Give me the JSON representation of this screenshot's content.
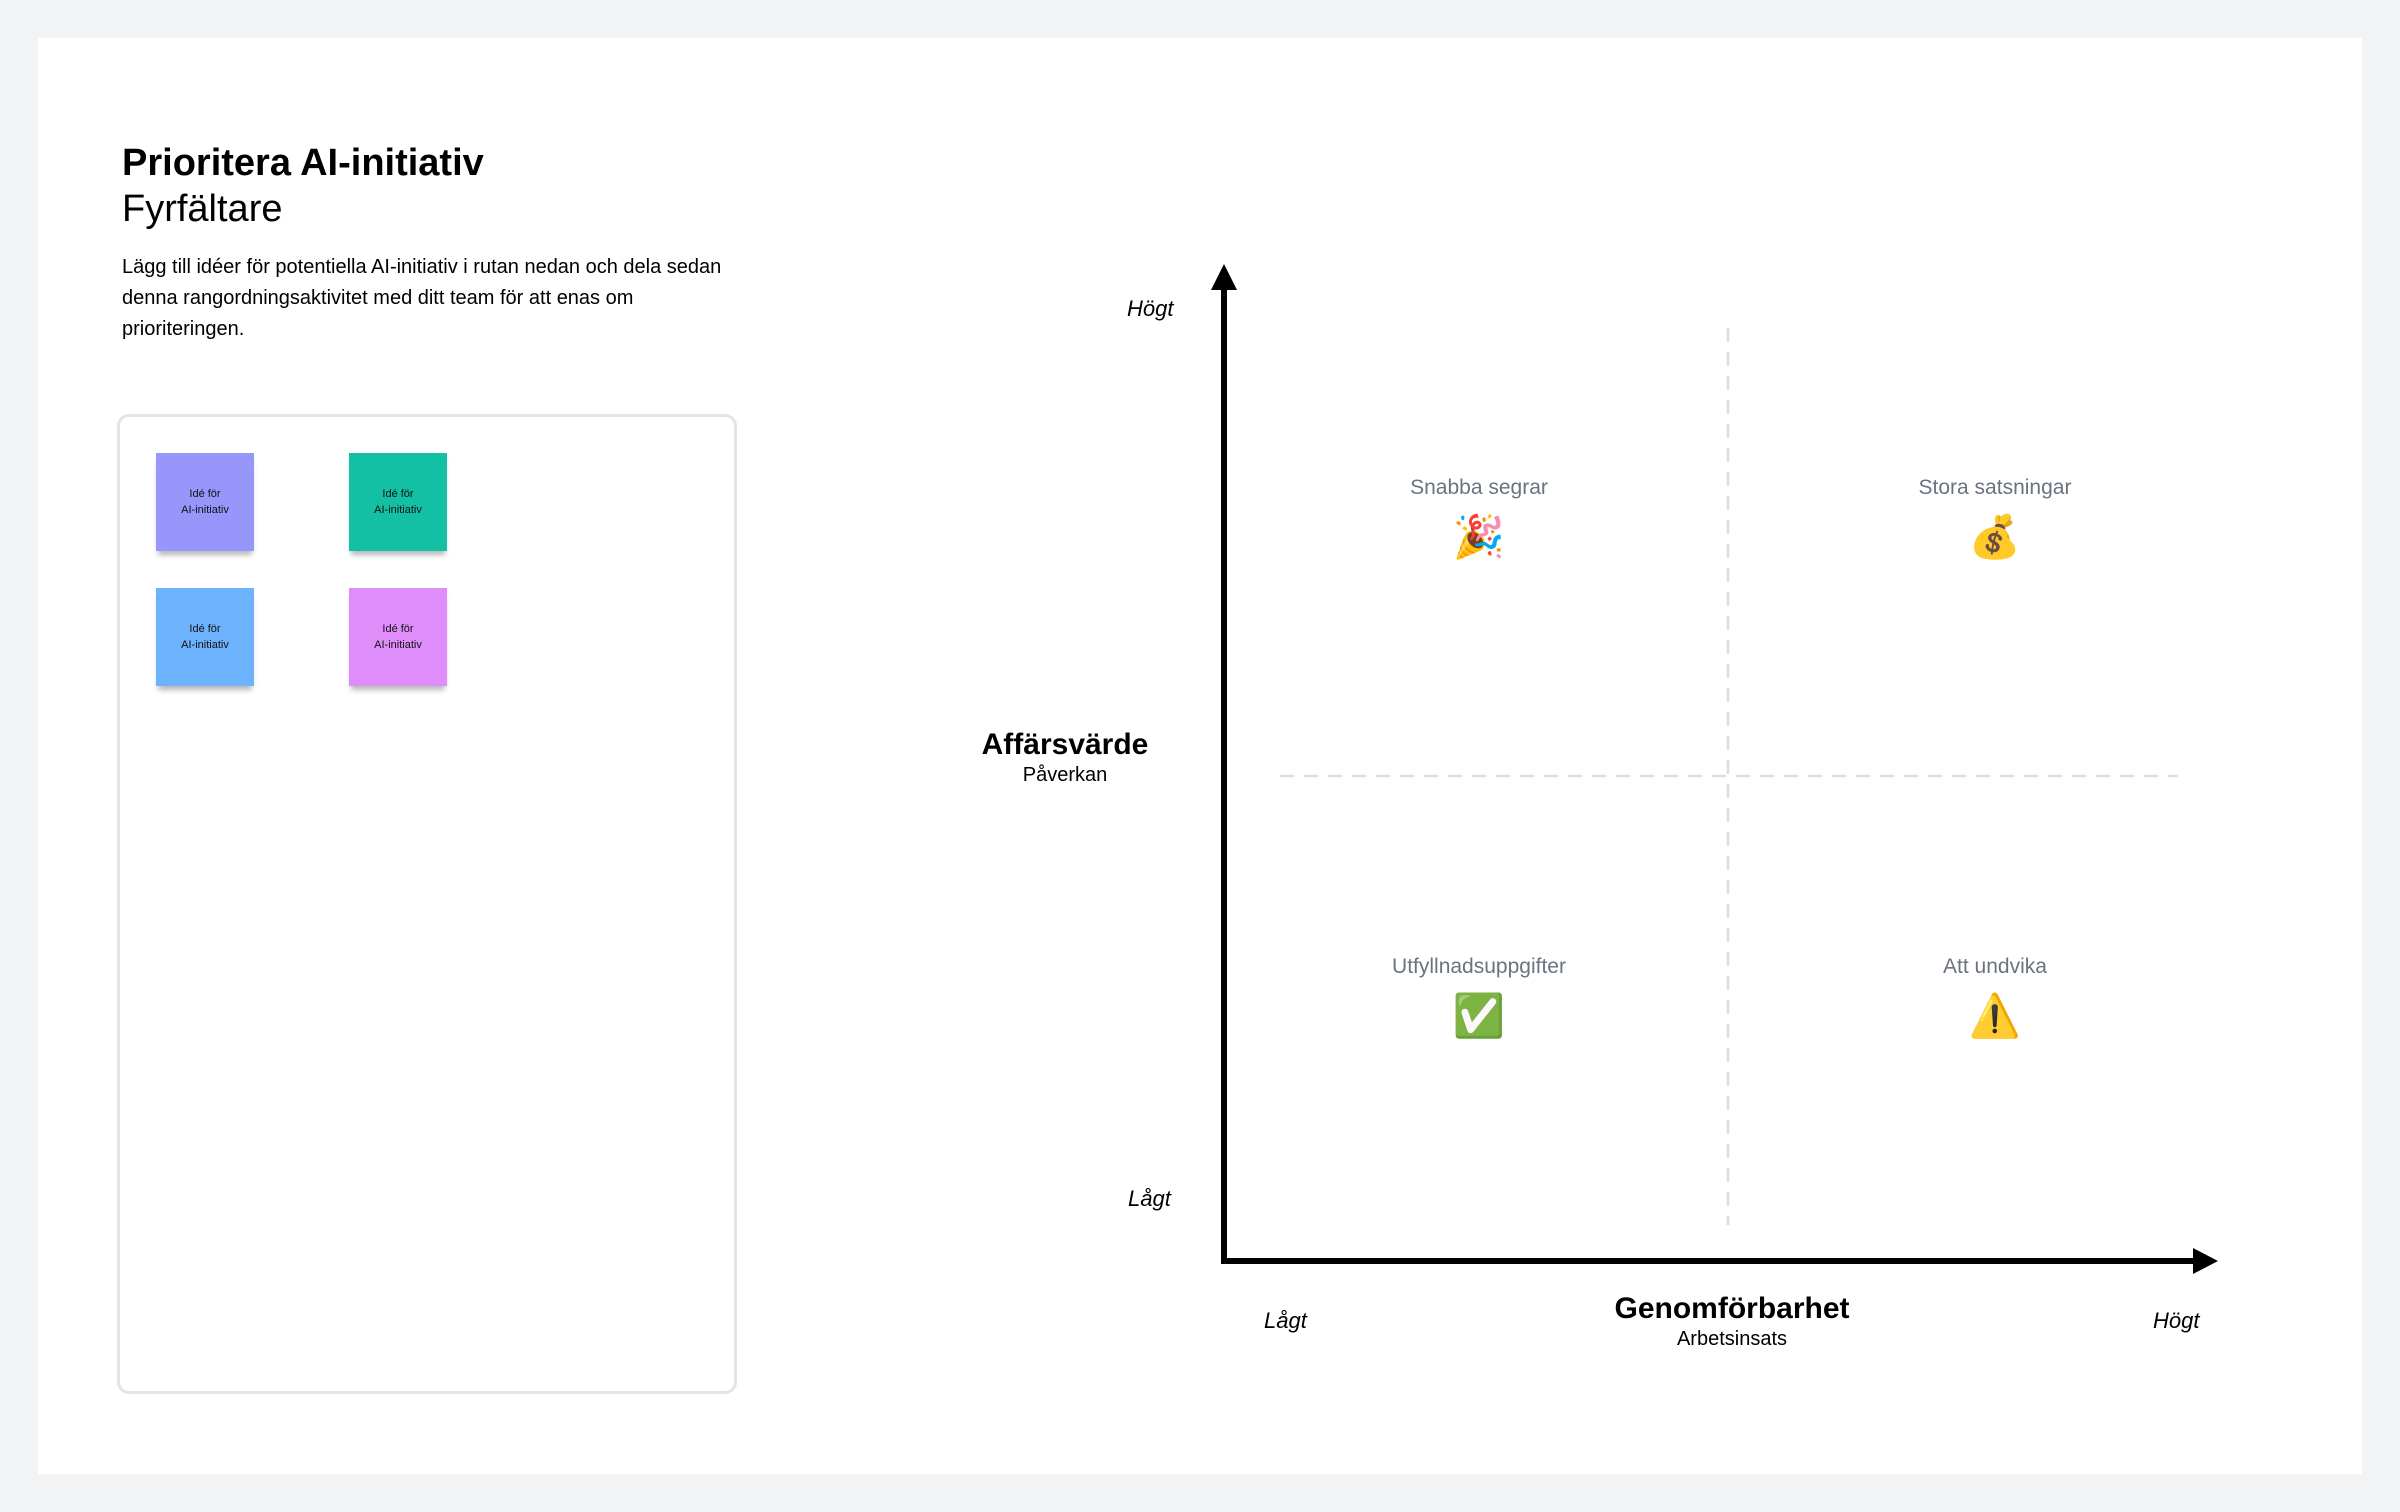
{
  "header": {
    "title": "Prioritera AI-initiativ",
    "subtitle": "Fyrfältare",
    "description": "Lägg till idéer för potentiella AI-initiativ i rutan nedan och dela sedan denna rangordningsaktivitet med ditt team för att enas om prioriteringen."
  },
  "ideas": [
    {
      "line1": "Idé för",
      "line2": "AI-initiativ",
      "color": "#9796fb"
    },
    {
      "line1": "Idé för",
      "line2": "AI-initiativ",
      "color": "#14c0a3"
    },
    {
      "line1": "Idé för",
      "line2": "AI-initiativ",
      "color": "#6cb2fd"
    },
    {
      "line1": "Idé för",
      "line2": "AI-initiativ",
      "color": "#e08dfc"
    }
  ],
  "matrix": {
    "y_axis": {
      "title": "Affärsvärde",
      "subtitle": "Påverkan",
      "high": "Högt",
      "low": "Lågt"
    },
    "x_axis": {
      "title": "Genomförbarhet",
      "subtitle": "Arbetsinsats",
      "high": "Högt",
      "low": "Lågt"
    },
    "quadrants": {
      "top_left": {
        "label": "Snabba segrar",
        "icon": "party-popper-icon",
        "glyph": "🎉"
      },
      "top_right": {
        "label": "Stora satsningar",
        "icon": "money-bag-icon",
        "glyph": "💰"
      },
      "bottom_left": {
        "label": "Utfyllnadsuppgifter",
        "icon": "check-mark-icon",
        "glyph": "✅"
      },
      "bottom_right": {
        "label": "Att undvika",
        "icon": "warning-icon",
        "glyph": "⚠️"
      }
    }
  }
}
